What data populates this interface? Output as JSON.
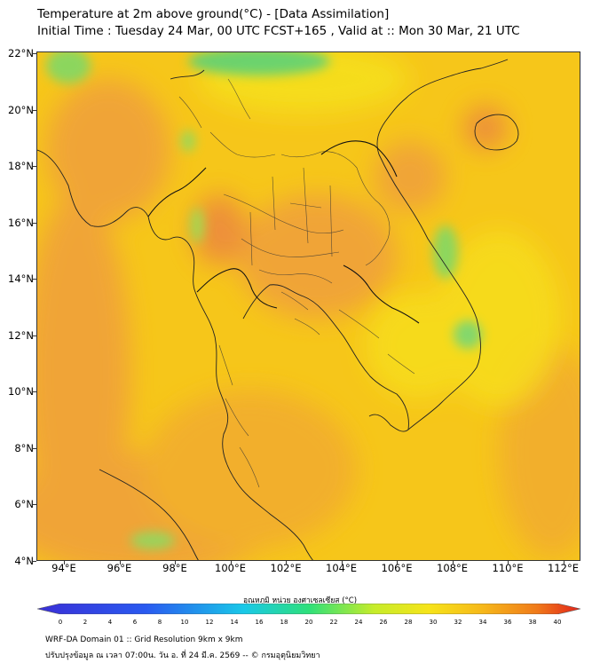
{
  "header": {
    "line1": "Temperature at 2m above ground(°C) - [Data Assimilation]",
    "line2": "Initial Time : Tuesday 24 Mar, 00 UTC FCST+165 , Valid at :: Mon 30 Mar, 21 UTC"
  },
  "map": {
    "y_ticks": [
      "22°N",
      "20°N",
      "18°N",
      "16°N",
      "14°N",
      "12°N",
      "10°N",
      "8°N",
      "6°N",
      "4°N"
    ],
    "x_ticks": [
      "94°E",
      "96°E",
      "98°E",
      "100°E",
      "102°E",
      "104°E",
      "106°E",
      "108°E",
      "110°E",
      "112°E"
    ],
    "colors": {
      "base": "#f6c61a",
      "orange": "#f0a13a",
      "deep_orange": "#ec8a3c",
      "yellow": "#f7df1a",
      "green": "#55d27c"
    }
  },
  "colorbar": {
    "title": "อุณหภูมิ หน่วย องศาเซลเซียส (°C)",
    "labels": [
      "0",
      "2",
      "4",
      "6",
      "8",
      "10",
      "12",
      "14",
      "16",
      "18",
      "20",
      "22",
      "24",
      "26",
      "28",
      "30",
      "32",
      "34",
      "36",
      "38",
      "40"
    ]
  },
  "footer": {
    "line1": "WRF-DA Domain 01 :: Grid Resolution 9km x 9km",
    "line2": "ปรับปรุงข้อมูล ณ เวลา 07:00น. วัน อ. ที่ 24 มี.ค. 2569 -- © กรมอุตุนิยมวิทยา"
  }
}
